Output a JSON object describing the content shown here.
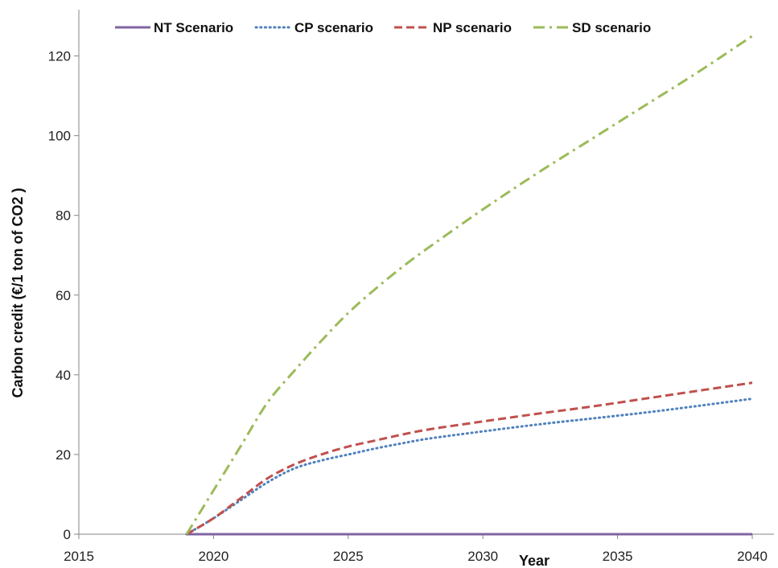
{
  "chart_data": {
    "type": "line",
    "title": "",
    "xlabel": "Year",
    "ylabel": "Carbon  credit (€/1 ton of CO2 )",
    "xlim": [
      2015,
      2040
    ],
    "ylim": [
      0,
      130
    ],
    "xticks": [
      2015,
      2020,
      2025,
      2030,
      2035,
      2040
    ],
    "yticks": [
      0,
      20,
      40,
      60,
      80,
      100,
      120
    ],
    "legend_position": "top",
    "grid": false,
    "series": [
      {
        "name": "NT Scenario",
        "color": "#8064A2",
        "style": "solid",
        "x": [
          2019,
          2040
        ],
        "y": [
          0,
          0
        ]
      },
      {
        "name": "CP scenario",
        "color": "#4F81BD",
        "style": "dotted",
        "x": [
          2019,
          2020,
          2021,
          2022,
          2023,
          2024,
          2025,
          2026,
          2027,
          2028,
          2030,
          2032,
          2034,
          2036,
          2038,
          2040
        ],
        "y": [
          0,
          4,
          8.5,
          13,
          16.5,
          18.5,
          20,
          21.5,
          22.8,
          24,
          25.8,
          27.5,
          29,
          30.5,
          32.2,
          34
        ]
      },
      {
        "name": "NP scenario",
        "color": "#C0504D",
        "style": "dashed",
        "x": [
          2019,
          2020,
          2021,
          2022,
          2023,
          2024,
          2025,
          2026,
          2027,
          2028,
          2030,
          2032,
          2034,
          2036,
          2038,
          2040
        ],
        "y": [
          0,
          4,
          9,
          14,
          17.5,
          20,
          22,
          23.5,
          25,
          26.3,
          28.3,
          30.2,
          32,
          34,
          36,
          38
        ]
      },
      {
        "name": "SD scenario",
        "color": "#9BBB59",
        "style": "dashdot",
        "x": [
          2019,
          2020,
          2021,
          2022,
          2023,
          2024,
          2025,
          2026,
          2027,
          2028,
          2030,
          2032,
          2034,
          2036,
          2038,
          2040
        ],
        "y": [
          0,
          11,
          22,
          33,
          41,
          48.5,
          55.5,
          61.5,
          67,
          72,
          81.5,
          90.5,
          99,
          107.5,
          116,
          125
        ]
      }
    ]
  }
}
